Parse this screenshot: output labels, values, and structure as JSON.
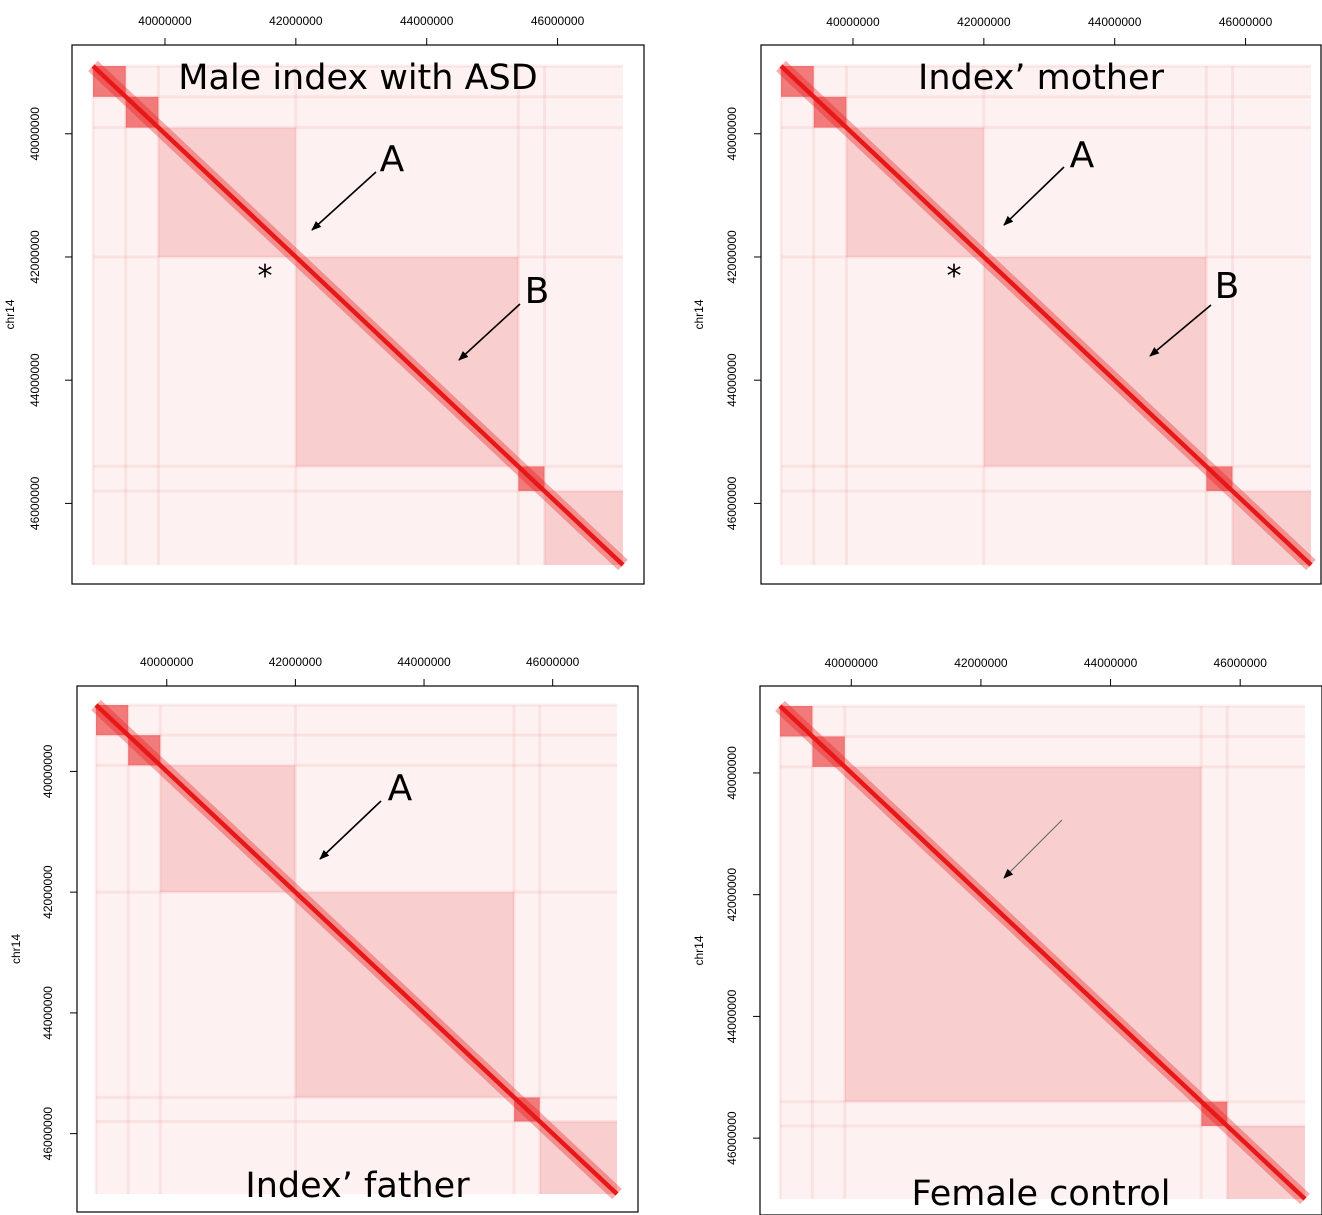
{
  "chart_data": [
    {
      "type": "heatmap",
      "title": "Male index with ASD",
      "ylabel": "chr14",
      "xticks": [
        "40000000",
        "42000000",
        "44000000",
        "46000000"
      ],
      "yticks": [
        "40000000",
        "42000000",
        "44000000",
        "46000000"
      ],
      "xlim": [
        38900000,
        47000000
      ],
      "ylim": [
        38900000,
        47000000
      ],
      "color": "#e81818",
      "tads": [
        [
          38900000,
          39400000
        ],
        [
          39400000,
          39900000
        ],
        [
          39900000,
          42000000
        ],
        [
          42000000,
          45400000
        ],
        [
          45400000,
          45800000
        ],
        [
          45800000,
          47000000
        ]
      ],
      "annotations": [
        {
          "label": "A",
          "pos": 42000000
        },
        {
          "label": "B",
          "pos": 44300000
        },
        {
          "label": "*",
          "pos": 42000000
        }
      ]
    },
    {
      "type": "heatmap",
      "title": "Index’ mother",
      "ylabel": "chr14",
      "xticks": [
        "40000000",
        "42000000",
        "44000000",
        "46000000"
      ],
      "yticks": [
        "40000000",
        "42000000",
        "44000000",
        "46000000"
      ],
      "xlim": [
        38900000,
        47000000
      ],
      "ylim": [
        38900000,
        47000000
      ],
      "color": "#e81818",
      "tads": [
        [
          38900000,
          39400000
        ],
        [
          39400000,
          39900000
        ],
        [
          39900000,
          42000000
        ],
        [
          42000000,
          45400000
        ],
        [
          45400000,
          45800000
        ],
        [
          45800000,
          47000000
        ]
      ],
      "annotations": [
        {
          "label": "A",
          "pos": 42000000
        },
        {
          "label": "B",
          "pos": 44300000
        },
        {
          "label": "*",
          "pos": 42000000
        }
      ]
    },
    {
      "type": "heatmap",
      "title": "Index’ father",
      "ylabel": "chr14",
      "xticks": [
        "40000000",
        "42000000",
        "44000000",
        "46000000"
      ],
      "yticks": [
        "40000000",
        "42000000",
        "44000000",
        "46000000"
      ],
      "xlim": [
        38900000,
        47000000
      ],
      "ylim": [
        38900000,
        47000000
      ],
      "color": "#e81818",
      "tads": [
        [
          38900000,
          39400000
        ],
        [
          39400000,
          39900000
        ],
        [
          39900000,
          42000000
        ],
        [
          42000000,
          45400000
        ],
        [
          45400000,
          45800000
        ],
        [
          45800000,
          47000000
        ]
      ],
      "annotations": [
        {
          "label": "A",
          "pos": 42000000
        }
      ]
    },
    {
      "type": "heatmap",
      "title": "Female control",
      "ylabel": "chr14",
      "xticks": [
        "40000000",
        "42000000",
        "44000000",
        "46000000"
      ],
      "yticks": [
        "40000000",
        "42000000",
        "44000000",
        "46000000"
      ],
      "xlim": [
        38900000,
        47000000
      ],
      "ylim": [
        38900000,
        47000000
      ],
      "color": "#e81818",
      "tads": [
        [
          38900000,
          39400000
        ],
        [
          39400000,
          39900000
        ],
        [
          39900000,
          45400000
        ],
        [
          45400000,
          45800000
        ],
        [
          45800000,
          47000000
        ]
      ],
      "annotations": [
        {
          "label": "",
          "pos": 42000000
        }
      ]
    }
  ]
}
